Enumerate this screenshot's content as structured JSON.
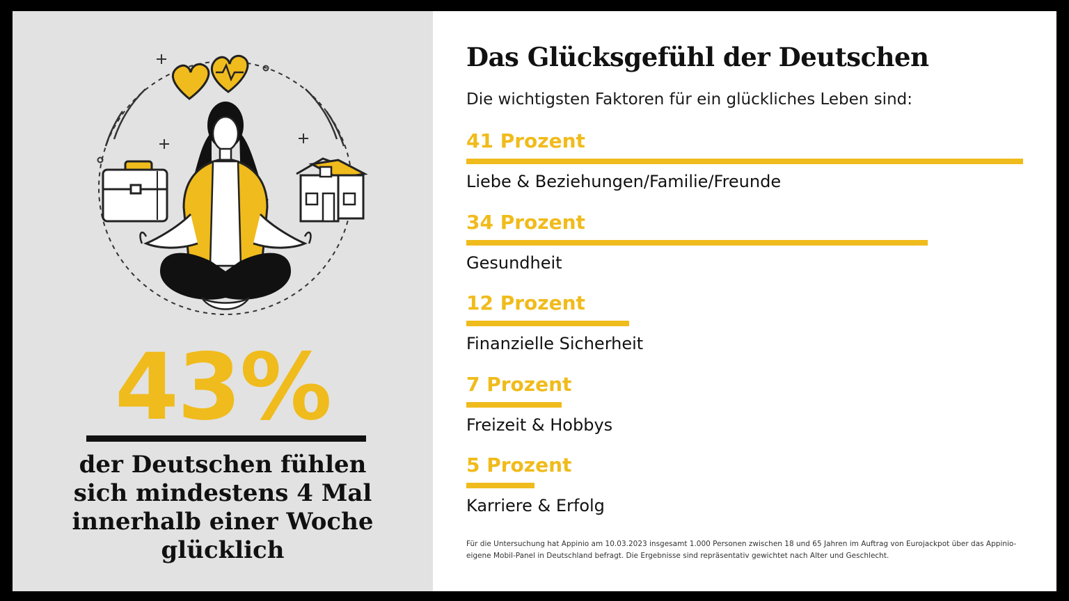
{
  "colors": {
    "accent": "#f0bb1c",
    "left_background": "#e2e2e2",
    "text": "#111111",
    "frame": "#000000"
  },
  "left": {
    "illustration_icons": [
      "woman-meditating-icon",
      "heart-icon",
      "heartbeat-heart-icon",
      "briefcase-icon",
      "house-icon",
      "sparkle-icon"
    ],
    "big_number": "43%",
    "caption": "der Deutschen fühlen sich mindestens 4 Mal innerhalb einer Woche glücklich"
  },
  "chart_data": {
    "type": "bar",
    "orientation": "horizontal",
    "title": "Das Glücksgefühl der Deutschen",
    "subtitle": "Die wichtigsten Faktoren für ein glückliches Leben sind:",
    "xlim": [
      0,
      41
    ],
    "unit": "Prozent",
    "bars": [
      {
        "value": 41,
        "value_label": "41 Prozent",
        "category": "Liebe & Beziehungen/Familie/Freunde"
      },
      {
        "value": 34,
        "value_label": "34 Prozent",
        "category": "Gesundheit"
      },
      {
        "value": 12,
        "value_label": "12 Prozent",
        "category": "Finanzielle Sicherheit"
      },
      {
        "value": 7,
        "value_label": "7 Prozent",
        "category": "Freizeit & Hobbys"
      },
      {
        "value": 5,
        "value_label": "5 Prozent",
        "category": "Karriere & Erfolg"
      }
    ],
    "footnote": "Für die Untersuchung hat Appinio am 10.03.2023 insgesamt 1.000 Personen zwischen 18 und 65 Jahren im Auftrag von Eurojackpot über das Appinio-eigene Mobil-Panel in Deutschland befragt. Die Ergebnisse sind repräsentativ gewichtet nach Alter und Geschlecht."
  }
}
